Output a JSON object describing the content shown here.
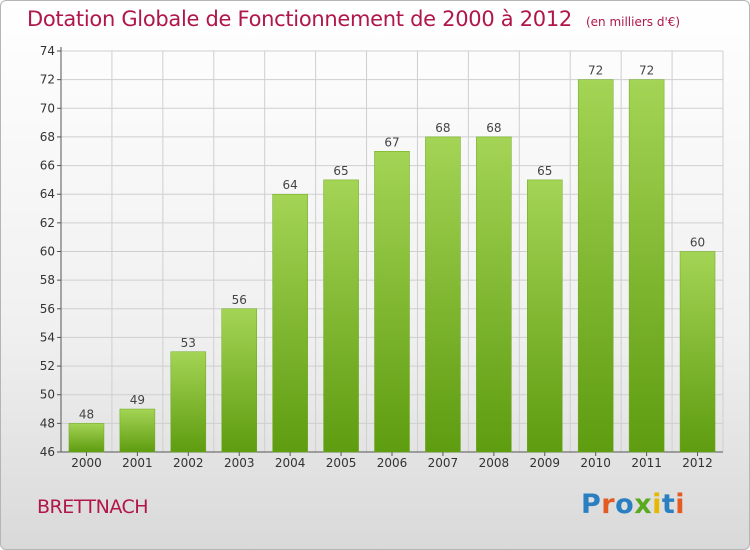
{
  "title": {
    "main": "Dotation Globale de Fonctionnement de 2000 à 2012",
    "unit": "(en milliers d'€)"
  },
  "commune": "BRETTNACH",
  "logo": {
    "text": "Proxiti",
    "letter_colors": [
      "#2a7fc1",
      "#e35a22",
      "#2a7fc1",
      "#5aaa20",
      "#e6b800",
      "#2a7fc1",
      "#e35a22"
    ]
  },
  "colors": {
    "title": "#b0164a",
    "bar_top": "#a4d455",
    "bar_bottom": "#5e9c10",
    "grid": "#cfcfcf"
  },
  "chart_data": {
    "type": "bar",
    "title": "Dotation Globale de Fonctionnement de 2000 à 2012",
    "subtitle": "(en milliers d'€)",
    "categories": [
      "2000",
      "2001",
      "2002",
      "2003",
      "2004",
      "2005",
      "2006",
      "2007",
      "2008",
      "2009",
      "2010",
      "2011",
      "2012"
    ],
    "values": [
      48,
      49,
      53,
      56,
      64,
      65,
      67,
      68,
      68,
      65,
      72,
      72,
      60
    ],
    "ylim": [
      46,
      74
    ],
    "yticks": [
      46,
      48,
      50,
      52,
      54,
      56,
      58,
      60,
      62,
      64,
      66,
      68,
      70,
      72,
      74
    ],
    "xlabel": "",
    "ylabel": "",
    "grid": true,
    "legend": "none"
  }
}
